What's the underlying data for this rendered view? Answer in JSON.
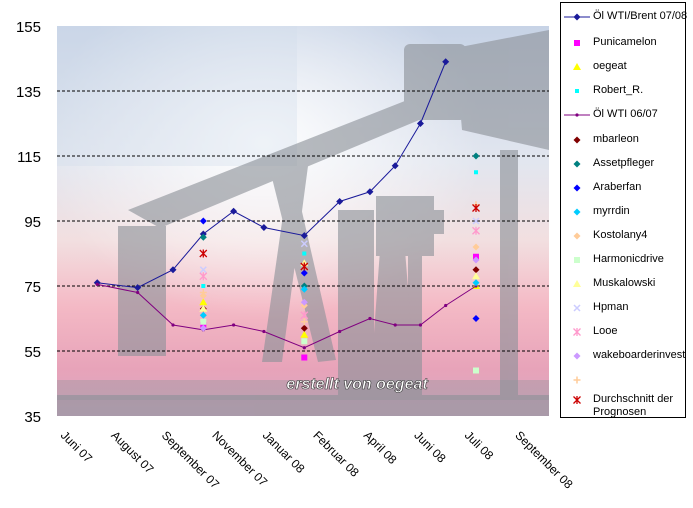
{
  "chart_data": {
    "type": "line",
    "yticks": [
      35,
      55,
      75,
      95,
      115,
      135,
      155
    ],
    "ylim": [
      35,
      155
    ],
    "x_tick_labels": [
      "Juni 07",
      "August 07",
      "September 07",
      "November 07",
      "Januar 08",
      "Februar 08",
      "April 08",
      "Juni 08",
      "Juli 08",
      "September 08"
    ],
    "annotation": "erstellt von oegeat",
    "grid": "horizontal dashed at 55, 75, 95, 115, 135",
    "background": "photo of oil pump jack at sunset",
    "series": [
      {
        "name": "Öl WTI/Brent 07/08",
        "kind": "line",
        "color": "#1a1a9a",
        "marker": "diamond",
        "points": [
          [
            0.5,
            76
          ],
          [
            1.3,
            74.5
          ],
          [
            2.0,
            80
          ],
          [
            2.6,
            91
          ],
          [
            3.2,
            98
          ],
          [
            3.8,
            93
          ],
          [
            4.6,
            90.5
          ],
          [
            5.3,
            101
          ],
          [
            5.9,
            104
          ],
          [
            6.4,
            112
          ],
          [
            6.9,
            125
          ],
          [
            7.4,
            144
          ]
        ]
      },
      {
        "name": "Punicamelon",
        "kind": "marker",
        "color": "#ff00ff",
        "marker": "square",
        "points": [
          [
            2.6,
            63
          ],
          [
            4.6,
            53
          ],
          [
            8.0,
            84
          ]
        ]
      },
      {
        "name": "oegeat",
        "kind": "marker",
        "color": "#ffff00",
        "marker": "triangle",
        "points": [
          [
            2.6,
            70
          ],
          [
            4.6,
            60
          ],
          [
            8.0,
            75
          ]
        ]
      },
      {
        "name": "Robert_R.",
        "kind": "marker",
        "color": "#00ffff",
        "marker": "square-small",
        "points": [
          [
            2.6,
            75
          ],
          [
            4.6,
            85
          ],
          [
            8.0,
            110
          ]
        ]
      },
      {
        "name": "Öl WTI 06/07",
        "kind": "line",
        "color": "#800080",
        "marker": "dot",
        "points": [
          [
            0.5,
            75.5
          ],
          [
            1.3,
            73
          ],
          [
            2.0,
            63
          ],
          [
            2.6,
            61.5
          ],
          [
            3.2,
            63
          ],
          [
            3.8,
            61
          ],
          [
            4.6,
            56
          ],
          [
            5.3,
            61
          ],
          [
            5.9,
            65
          ],
          [
            6.4,
            63
          ],
          [
            6.9,
            63
          ],
          [
            7.4,
            69
          ],
          [
            8.0,
            75
          ]
        ]
      },
      {
        "name": "mbarleon",
        "kind": "marker",
        "color": "#800000",
        "marker": "diamond",
        "points": [
          [
            2.6,
            68
          ],
          [
            4.6,
            62
          ],
          [
            8.0,
            80
          ]
        ]
      },
      {
        "name": "Assetpfleger",
        "kind": "marker",
        "color": "#008080",
        "marker": "diamond",
        "points": [
          [
            2.6,
            90
          ],
          [
            4.6,
            75
          ],
          [
            8.0,
            115
          ]
        ]
      },
      {
        "name": "Araberfan",
        "kind": "marker",
        "color": "#0000ff",
        "marker": "diamond",
        "points": [
          [
            2.6,
            95
          ],
          [
            4.6,
            79
          ],
          [
            8.0,
            65
          ]
        ]
      },
      {
        "name": "myrrdin",
        "kind": "marker",
        "color": "#00ccff",
        "marker": "diamond",
        "points": [
          [
            2.6,
            66
          ],
          [
            4.6,
            74
          ],
          [
            8.0,
            76
          ]
        ]
      },
      {
        "name": "Kostolany4",
        "kind": "marker",
        "color": "#ffcc99",
        "marker": "diamond",
        "points": [
          [
            2.6,
            72
          ],
          [
            4.6,
            69
          ],
          [
            8.0,
            87
          ]
        ]
      },
      {
        "name": "Harmonicdrive",
        "kind": "marker",
        "color": "#ccffcc",
        "marker": "square",
        "points": [
          [
            2.6,
            64
          ],
          [
            4.6,
            58
          ],
          [
            8.0,
            49
          ]
        ]
      },
      {
        "name": "Muskalowski",
        "kind": "marker",
        "color": "#ffff99",
        "marker": "triangle",
        "points": [
          [
            2.6,
            68
          ],
          [
            4.6,
            82
          ],
          [
            8.0,
            78
          ]
        ]
      },
      {
        "name": "Hpman",
        "kind": "marker",
        "color": "#ccccff",
        "marker": "x",
        "points": [
          [
            2.6,
            80
          ],
          [
            4.6,
            88
          ],
          [
            8.0,
            95
          ]
        ]
      },
      {
        "name": "Looe",
        "kind": "marker",
        "color": "#ff99cc",
        "marker": "star",
        "points": [
          [
            2.6,
            78
          ],
          [
            4.6,
            66
          ],
          [
            8.0,
            92
          ]
        ]
      },
      {
        "name": "wakeboarderinvest",
        "kind": "marker",
        "color": "#cc99ff",
        "marker": "diamond",
        "points": [
          [
            2.6,
            62
          ],
          [
            4.6,
            70
          ],
          [
            8.0,
            83
          ]
        ]
      },
      {
        "name": "",
        "kind": "marker",
        "color": "#ffcc99",
        "marker": "plus",
        "points": [
          [
            2.6,
            73
          ],
          [
            4.6,
            64
          ],
          [
            8.0,
            100
          ]
        ]
      },
      {
        "name": "Durchschnitt der Prognosen",
        "kind": "marker",
        "color": "#cc0000",
        "marker": "star",
        "points": [
          [
            2.6,
            85
          ],
          [
            4.6,
            81
          ],
          [
            8.0,
            99
          ]
        ]
      }
    ]
  }
}
